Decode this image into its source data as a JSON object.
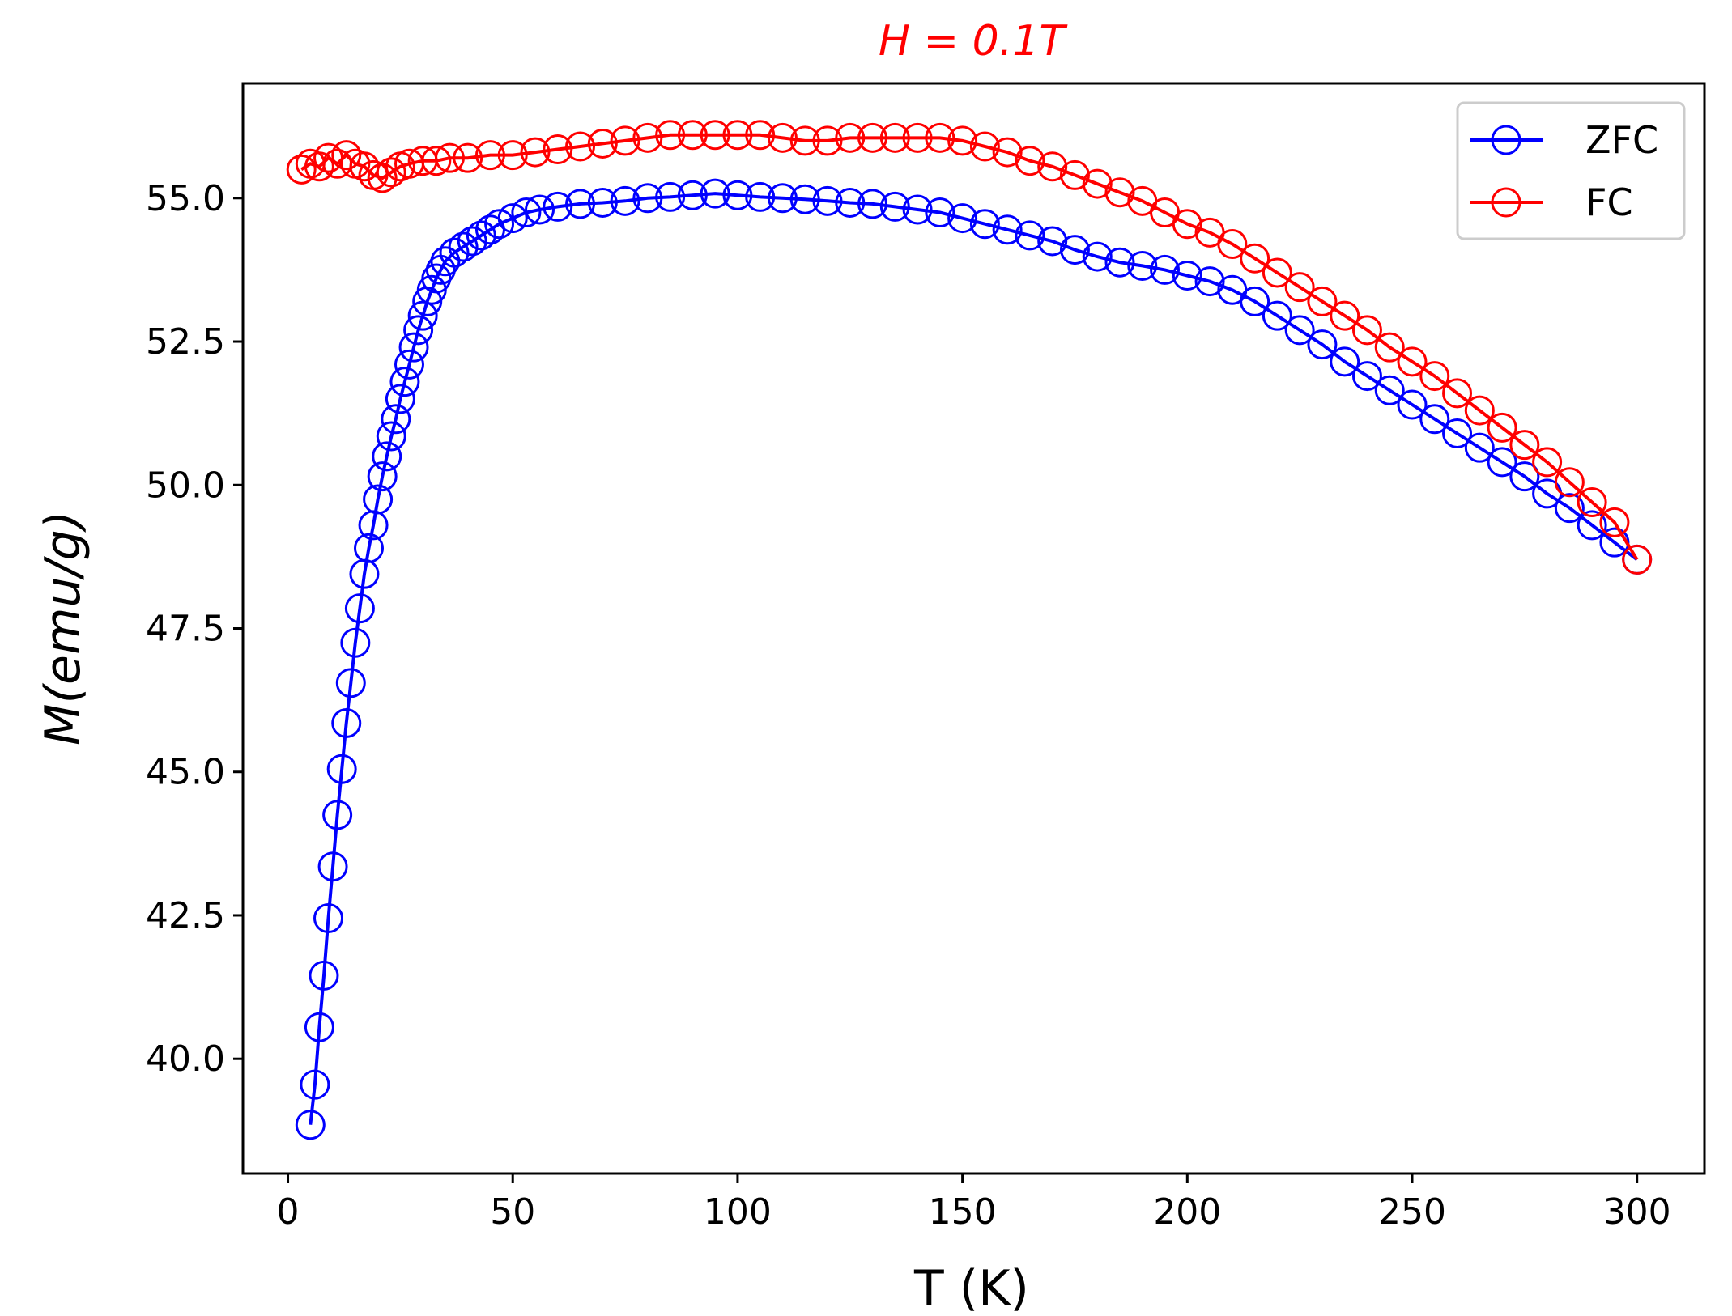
{
  "chart_data": {
    "type": "line",
    "title": "H = 0.1T",
    "xlabel": "T (K)",
    "ylabel": "M(emu/g)",
    "xlim": [
      -10,
      315
    ],
    "ylim": [
      38.0,
      57.0
    ],
    "xticks": [
      0,
      50,
      100,
      150,
      200,
      250,
      300
    ],
    "xtick_labels": [
      "0",
      "50",
      "100",
      "150",
      "200",
      "250",
      "300"
    ],
    "yticks": [
      40.0,
      42.5,
      45.0,
      47.5,
      50.0,
      52.5,
      55.0
    ],
    "ytick_labels": [
      "40.0",
      "42.5",
      "45.0",
      "47.5",
      "50.0",
      "52.5",
      "55.0"
    ],
    "grid": false,
    "legend": {
      "position": "top-right",
      "entries": [
        "ZFC",
        "FC"
      ]
    },
    "colors": {
      "ZFC": "#0000ff",
      "FC": "#ff0000",
      "title": "#ff0000"
    },
    "marker": "open-circle",
    "series": [
      {
        "name": "ZFC",
        "color": "#0000ff",
        "x": [
          5,
          6,
          7,
          8,
          9,
          10,
          11,
          12,
          13,
          14,
          15,
          16,
          17,
          18,
          19,
          20,
          21,
          22,
          23,
          24,
          25,
          26,
          27,
          28,
          29,
          30,
          31,
          32,
          33,
          34,
          35,
          37,
          39,
          41,
          43,
          45,
          47,
          50,
          53,
          56,
          60,
          65,
          70,
          75,
          80,
          85,
          90,
          95,
          100,
          105,
          110,
          115,
          120,
          125,
          130,
          135,
          140,
          145,
          150,
          155,
          160,
          165,
          170,
          175,
          180,
          185,
          190,
          195,
          200,
          205,
          210,
          215,
          220,
          225,
          230,
          235,
          240,
          245,
          250,
          255,
          260,
          265,
          270,
          275,
          280,
          285,
          290,
          295,
          300
        ],
        "y": [
          38.85,
          39.55,
          40.55,
          41.45,
          42.45,
          43.35,
          44.25,
          45.05,
          45.85,
          46.55,
          47.25,
          47.85,
          48.45,
          48.9,
          49.3,
          49.75,
          50.15,
          50.5,
          50.85,
          51.15,
          51.5,
          51.8,
          52.1,
          52.4,
          52.7,
          52.95,
          53.2,
          53.4,
          53.6,
          53.75,
          53.9,
          54.05,
          54.15,
          54.25,
          54.35,
          54.45,
          54.55,
          54.65,
          54.75,
          54.8,
          54.85,
          54.9,
          54.92,
          54.95,
          55.0,
          55.02,
          55.05,
          55.08,
          55.05,
          55.02,
          55.0,
          54.98,
          54.95,
          54.92,
          54.9,
          54.85,
          54.8,
          54.75,
          54.65,
          54.55,
          54.45,
          54.35,
          54.25,
          54.1,
          53.98,
          53.88,
          53.82,
          53.75,
          53.65,
          53.55,
          53.4,
          53.2,
          52.95,
          52.7,
          52.45,
          52.15,
          51.9,
          51.65,
          51.4,
          51.15,
          50.9,
          50.65,
          50.4,
          50.15,
          49.85,
          49.6,
          49.3,
          49.0,
          48.7
        ]
      },
      {
        "name": "FC",
        "color": "#ff0000",
        "x": [
          3,
          5,
          7,
          9,
          11,
          13,
          15,
          17,
          19,
          21,
          23,
          25,
          27,
          30,
          33,
          36,
          40,
          45,
          50,
          55,
          60,
          65,
          70,
          75,
          80,
          85,
          90,
          95,
          100,
          105,
          110,
          115,
          120,
          125,
          130,
          135,
          140,
          145,
          150,
          155,
          160,
          165,
          170,
          175,
          180,
          185,
          190,
          195,
          200,
          205,
          210,
          215,
          220,
          225,
          230,
          235,
          240,
          245,
          250,
          255,
          260,
          265,
          270,
          275,
          280,
          285,
          290,
          295,
          300
        ],
        "y": [
          55.5,
          55.6,
          55.55,
          55.7,
          55.6,
          55.75,
          55.6,
          55.55,
          55.4,
          55.35,
          55.45,
          55.55,
          55.6,
          55.65,
          55.65,
          55.7,
          55.7,
          55.75,
          55.75,
          55.8,
          55.85,
          55.9,
          55.95,
          56.0,
          56.05,
          56.1,
          56.1,
          56.1,
          56.1,
          56.1,
          56.05,
          56.0,
          56.0,
          56.05,
          56.05,
          56.05,
          56.05,
          56.05,
          56.0,
          55.9,
          55.8,
          55.65,
          55.55,
          55.4,
          55.25,
          55.1,
          54.95,
          54.75,
          54.55,
          54.4,
          54.2,
          53.95,
          53.7,
          53.45,
          53.2,
          52.95,
          52.7,
          52.4,
          52.15,
          51.9,
          51.6,
          51.3,
          51.0,
          50.7,
          50.4,
          50.05,
          49.7,
          49.35,
          48.7
        ]
      }
    ]
  }
}
